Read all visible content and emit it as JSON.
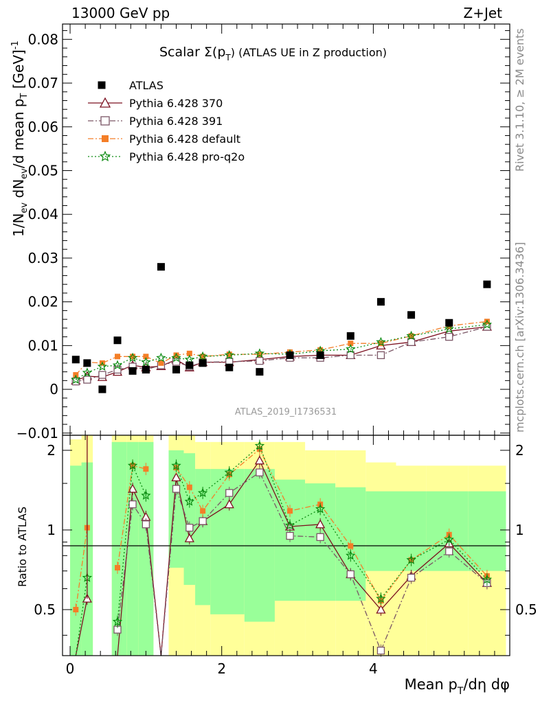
{
  "header": {
    "left": "13000 GeV pp",
    "right": "Z+Jet"
  },
  "side_text": {
    "top": "Rivet 3.1.10, ≥ 2M events",
    "bottom": "mcplots.cern.ch [arXiv:1306.3436]"
  },
  "chart_data": [
    {
      "type": "line",
      "title": "Scalar Σ(p_T) (ATLAS UE in Z production)",
      "title_main": "Scalar Σ(p",
      "title_sub": "T",
      "title_end": ")  (ATLAS UE in Z production)",
      "ylabel": "1/N_ev dN_ev/d mean p_T [GeV]^-1",
      "watermark": "ATLAS_2019_I1736531",
      "xlim": [
        -0.1,
        5.8
      ],
      "ylim": [
        -0.0105,
        0.0835
      ],
      "yticks": [
        -0.01,
        0,
        0.01,
        0.02,
        0.03,
        0.04,
        0.05,
        0.06,
        0.07,
        0.08
      ],
      "ytick_labels": [
        "−0.01",
        "0",
        "0.01",
        "0.02",
        "0.03",
        "0.04",
        "0.05",
        "0.06",
        "0.07",
        "0.08"
      ],
      "legend_position": "top-left",
      "x": [
        0.075,
        0.225,
        0.425,
        0.625,
        0.825,
        1.0,
        1.2,
        1.4,
        1.575,
        1.75,
        2.1,
        2.5,
        2.9,
        3.3,
        3.7,
        4.1,
        4.5,
        5.0,
        5.5
      ],
      "atlas": {
        "name": "ATLAS",
        "values": [
          0.0068,
          0.006,
          0.0,
          0.0112,
          0.0042,
          0.0045,
          0.028,
          0.0045,
          0.0055,
          0.006,
          0.005,
          0.004,
          0.0078,
          0.0078,
          0.0122,
          0.02,
          0.017,
          0.0152,
          0.024
        ]
      },
      "series": [
        {
          "name": "Pythia 6.428 370",
          "color": "#7b0e1e",
          "dash": "",
          "marker": "triangle",
          "values": [
            0.002,
            0.003,
            0.0028,
            0.004,
            0.0055,
            0.005,
            0.0053,
            0.0068,
            0.005,
            0.0062,
            0.0062,
            0.0068,
            0.0075,
            0.0078,
            0.0078,
            0.01,
            0.0108,
            0.0133,
            0.0143
          ]
        },
        {
          "name": "Pythia 6.428 391",
          "color": "#7a5565",
          "dash": "8 3 2 3",
          "marker": "square",
          "values": [
            0.0018,
            0.0022,
            0.0033,
            0.0045,
            0.0052,
            0.0045,
            0.0055,
            0.0063,
            0.0052,
            0.0062,
            0.0063,
            0.0065,
            0.0072,
            0.0072,
            0.0078,
            0.0078,
            0.0108,
            0.012,
            0.0143
          ]
        },
        {
          "name": "Pythia 6.428 default",
          "color": "#f47e27",
          "dash": "8 3 2 3",
          "marker": "filled-square",
          "values": [
            0.0033,
            0.0062,
            0.006,
            0.0075,
            0.0075,
            0.0075,
            0.006,
            0.0078,
            0.0082,
            0.0075,
            0.008,
            0.008,
            0.0085,
            0.009,
            0.0105,
            0.0105,
            0.0122,
            0.0145,
            0.0155
          ]
        },
        {
          "name": "Pythia 6.428 pro-q2o",
          "color": "#0a8a10",
          "dash": "2 3",
          "marker": "star",
          "values": [
            0.0022,
            0.0038,
            0.0052,
            0.0055,
            0.0072,
            0.0062,
            0.0072,
            0.0072,
            0.0068,
            0.0075,
            0.0078,
            0.0082,
            0.008,
            0.0088,
            0.0092,
            0.0108,
            0.0122,
            0.0138,
            0.0148
          ]
        }
      ]
    },
    {
      "type": "line",
      "ylabel": "Ratio to ATLAS",
      "xlabel": "Mean p_T/dη dφ",
      "xlabel_main": "Mean p",
      "xlabel_sub": "T",
      "xlabel_end": "/dη dφ",
      "xlim": [
        -0.1,
        5.8
      ],
      "ylim": [
        0.335,
        2.28
      ],
      "yticks": [
        0.5,
        1,
        2
      ],
      "ytick_labels": [
        "0.5",
        "1",
        "2"
      ],
      "xticks": [
        0,
        2,
        4
      ],
      "xtick_labels": [
        "0",
        "2",
        "4"
      ],
      "bands": {
        "edges": [
          0.0,
          0.15,
          0.3,
          0.55,
          0.75,
          0.9,
          1.1,
          1.3,
          1.5,
          1.65,
          1.85,
          2.3,
          2.7,
          3.1,
          3.5,
          3.9,
          4.3,
          4.7,
          5.25,
          5.75
        ],
        "yellow": [
          [
            0.3,
            2.2
          ],
          [
            0.3,
            2.3
          ],
          null,
          [
            0.3,
            2.3
          ],
          [
            0.3,
            2.3
          ],
          [
            0.3,
            2.3
          ],
          null,
          [
            0.3,
            2.3
          ],
          [
            0.3,
            2.3
          ],
          [
            0.3,
            2.15
          ],
          [
            0.3,
            2.15
          ],
          [
            0.3,
            2.15
          ],
          [
            0.3,
            2.15
          ],
          [
            0.3,
            2.0
          ],
          [
            0.3,
            2.0
          ],
          [
            0.3,
            1.8
          ],
          [
            0.3,
            1.75
          ],
          [
            0.3,
            1.75
          ],
          [
            0.3,
            1.75
          ]
        ],
        "green": [
          [
            0.3,
            1.75
          ],
          [
            0.3,
            1.8
          ],
          null,
          [
            0.3,
            2.15
          ],
          [
            0.3,
            2.15
          ],
          [
            0.3,
            2.15
          ],
          null,
          [
            0.72,
            2.0
          ],
          [
            0.62,
            1.95
          ],
          [
            0.52,
            1.7
          ],
          [
            0.48,
            1.7
          ],
          [
            0.45,
            1.7
          ],
          [
            0.54,
            1.55
          ],
          [
            0.54,
            1.5
          ],
          [
            0.54,
            1.45
          ],
          [
            0.7,
            1.4
          ],
          [
            0.7,
            1.4
          ],
          [
            0.7,
            1.4
          ],
          [
            0.7,
            1.4
          ]
        ]
      },
      "series": [
        {
          "name": "Pythia 6.428 370",
          "values": [
            0.3,
            0.55,
            null,
            0.3,
            1.43,
            1.12,
            0.3,
            1.58,
            0.93,
            1.08,
            1.25,
            1.83,
            1.03,
            1.05,
            0.68,
            0.5,
            0.67,
            0.89,
            0.63
          ]
        },
        {
          "name": "Pythia 6.428 391",
          "values": [
            null,
            null,
            null,
            0.42,
            1.25,
            1.05,
            0.3,
            1.43,
            1.02,
            1.08,
            1.38,
            1.65,
            0.95,
            0.94,
            0.68,
            0.35,
            0.66,
            0.83,
            0.63
          ]
        },
        {
          "name": "Pythia 6.428 default",
          "values": [
            0.5,
            1.02,
            null,
            0.72,
            1.75,
            1.7,
            null,
            1.72,
            1.45,
            1.18,
            1.62,
            2.02,
            1.18,
            1.25,
            0.87,
            0.54,
            0.77,
            0.96,
            0.67
          ]
        },
        {
          "name": "Pythia 6.428 pro-q2o",
          "values": [
            0.3,
            0.66,
            null,
            0.45,
            1.75,
            1.35,
            null,
            1.75,
            1.28,
            1.38,
            1.65,
            2.08,
            1.04,
            1.2,
            0.8,
            0.55,
            0.77,
            0.92,
            0.65
          ]
        }
      ]
    }
  ]
}
